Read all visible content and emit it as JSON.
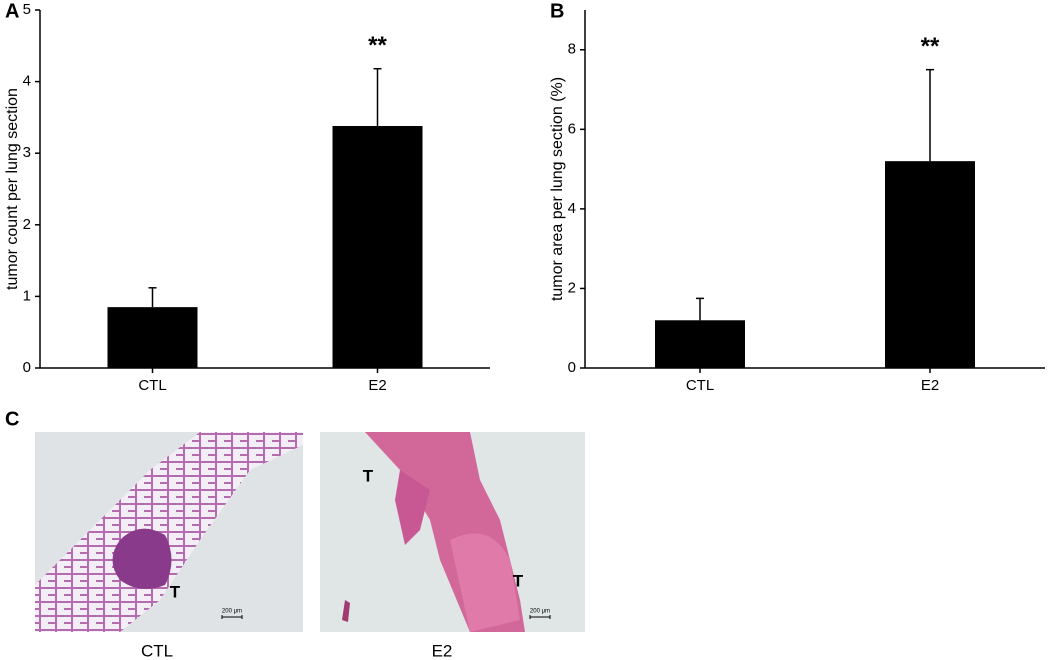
{
  "chart_data": [
    {
      "type": "bar",
      "panel": "A",
      "y_label": "tumor count per lung section",
      "categories": [
        "CTL",
        "E2"
      ],
      "values": [
        0.85,
        3.38
      ],
      "errors": [
        0.27,
        0.8
      ],
      "color": "#000000",
      "ylim": [
        0,
        5
      ],
      "yticks": [
        0,
        1,
        2,
        3,
        4,
        5
      ],
      "annotations": [
        {
          "category": "E2",
          "text": "**"
        }
      ]
    },
    {
      "type": "bar",
      "panel": "B",
      "y_label": "tumor area per lung section (%)",
      "categories": [
        "CTL",
        "E2"
      ],
      "values": [
        1.2,
        5.2
      ],
      "errors": [
        0.55,
        2.3
      ],
      "color": "#000000",
      "ylim": [
        0,
        9
      ],
      "yticks": [
        0,
        2,
        4,
        6,
        8
      ],
      "annotations": [
        {
          "category": "E2",
          "text": "**"
        }
      ]
    }
  ],
  "panel_c": {
    "label": "C",
    "images": [
      {
        "caption": "CTL",
        "marks": [
          "T"
        ],
        "scale": "200 μm"
      },
      {
        "caption": "E2",
        "marks": [
          "T",
          "T"
        ],
        "scale": "200 μm"
      }
    ]
  }
}
